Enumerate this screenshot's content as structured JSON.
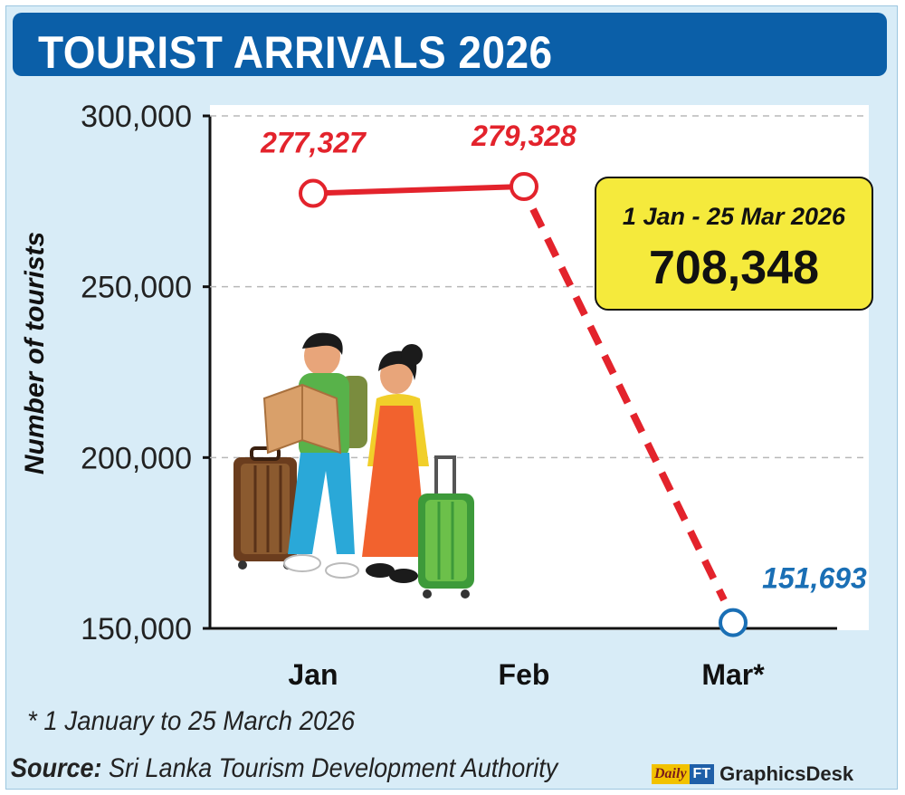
{
  "header": {
    "title": "TOURIST ARRIVALS 2026"
  },
  "chart_data": {
    "type": "line",
    "title": "TOURIST ARRIVALS 2026",
    "ylabel": "Number of tourists",
    "xlabel": "",
    "categories": [
      "Jan",
      "Feb",
      "Mar*"
    ],
    "values": [
      277327,
      279328,
      151693
    ],
    "data_labels": [
      "277,327",
      "279,328",
      "151,693"
    ],
    "ylim": [
      150000,
      300000
    ],
    "yticks": [
      150000,
      200000,
      250000,
      300000
    ],
    "ytick_labels": [
      "150,000",
      "200,000",
      "250,000",
      "300,000"
    ],
    "grid": "horizontal dashed",
    "line_style": [
      "solid",
      "dashed"
    ],
    "colors": {
      "line": "#e3232c",
      "last_point": "#1a6fb5",
      "highlight_box": "#f5ea3c",
      "header": "#0b5fa8"
    }
  },
  "callout": {
    "period": "1 Jan - 25 Mar 2026",
    "total": "708,348"
  },
  "footnote": "* 1 January to 25 March 2026",
  "source": {
    "label": "Source:",
    "text": " Sri Lanka Tourism Development Authority"
  },
  "logo": {
    "daily": "Daily",
    "ft": "FT",
    "desk": "GraphicsDesk"
  },
  "illustration": {
    "icon": "travellers-with-luggage-illustration"
  }
}
